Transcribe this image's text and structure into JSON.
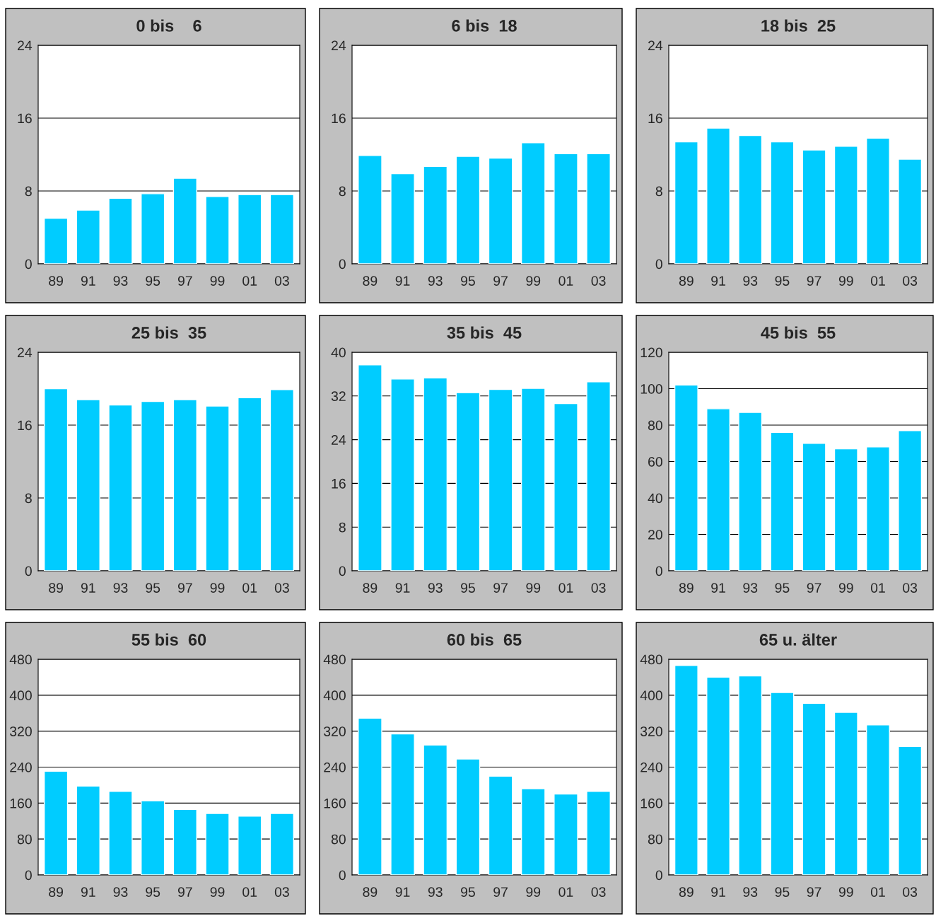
{
  "chart_data": [
    {
      "type": "bar",
      "title": "0 bis    6",
      "categories": [
        "89",
        "91",
        "93",
        "95",
        "97",
        "99",
        "01",
        "03"
      ],
      "series": [
        {
          "color": "#00ccff",
          "values": [
            5.0,
            5.9,
            7.2,
            7.7,
            9.4,
            7.4,
            7.6,
            7.6
          ]
        }
      ],
      "ylim": [
        0,
        24
      ],
      "yticks": [
        0,
        8,
        16,
        24
      ],
      "grid": "y"
    },
    {
      "type": "bar",
      "title": "6 bis  18",
      "categories": [
        "89",
        "91",
        "93",
        "95",
        "97",
        "99",
        "01",
        "03"
      ],
      "series": [
        {
          "color": "#00ccff",
          "values": [
            11.9,
            9.9,
            10.7,
            11.8,
            11.6,
            13.3,
            12.1,
            12.1
          ]
        }
      ],
      "ylim": [
        0,
        24
      ],
      "yticks": [
        0,
        8,
        16,
        24
      ],
      "grid": "y"
    },
    {
      "type": "bar",
      "title": "18 bis  25",
      "categories": [
        "89",
        "91",
        "93",
        "95",
        "97",
        "99",
        "01",
        "03"
      ],
      "series": [
        {
          "color": "#00ccff",
          "values": [
            13.4,
            14.9,
            14.1,
            13.4,
            12.5,
            12.9,
            13.8,
            11.5
          ]
        }
      ],
      "ylim": [
        0,
        24
      ],
      "yticks": [
        0,
        8,
        16,
        24
      ],
      "grid": "y"
    },
    {
      "type": "bar",
      "title": "25 bis  35",
      "categories": [
        "89",
        "91",
        "93",
        "95",
        "97",
        "99",
        "01",
        "03"
      ],
      "series": [
        {
          "color": "#00ccff",
          "values": [
            20.0,
            18.8,
            18.2,
            18.6,
            18.8,
            18.1,
            19.0,
            19.9
          ]
        }
      ],
      "ylim": [
        0,
        24
      ],
      "yticks": [
        0,
        8,
        16,
        24
      ],
      "grid": "y"
    },
    {
      "type": "bar",
      "title": "35 bis  45",
      "categories": [
        "89",
        "91",
        "93",
        "95",
        "97",
        "99",
        "01",
        "03"
      ],
      "series": [
        {
          "color": "#00ccff",
          "values": [
            37.7,
            35.1,
            35.3,
            32.6,
            33.2,
            33.4,
            30.6,
            34.6
          ]
        }
      ],
      "ylim": [
        0,
        40
      ],
      "yticks": [
        0,
        8,
        16,
        24,
        32,
        40
      ],
      "grid": "y"
    },
    {
      "type": "bar",
      "title": "45 bis  55",
      "categories": [
        "89",
        "91",
        "93",
        "95",
        "97",
        "99",
        "01",
        "03"
      ],
      "series": [
        {
          "color": "#00ccff",
          "values": [
            102,
            89,
            87,
            76,
            70,
            67,
            68,
            77
          ]
        }
      ],
      "ylim": [
        0,
        120
      ],
      "yticks": [
        0,
        20,
        40,
        60,
        80,
        100,
        120
      ],
      "grid": "y"
    },
    {
      "type": "bar",
      "title": "55 bis  60",
      "categories": [
        "89",
        "91",
        "93",
        "95",
        "97",
        "99",
        "01",
        "03"
      ],
      "series": [
        {
          "color": "#00ccff",
          "values": [
            231,
            198,
            186,
            165,
            146,
            137,
            131,
            137
          ]
        }
      ],
      "ylim": [
        0,
        480
      ],
      "yticks": [
        0,
        80,
        160,
        240,
        320,
        400,
        480
      ],
      "grid": "y"
    },
    {
      "type": "bar",
      "title": "60 bis  65",
      "categories": [
        "89",
        "91",
        "93",
        "95",
        "97",
        "99",
        "01",
        "03"
      ],
      "series": [
        {
          "color": "#00ccff",
          "values": [
            349,
            314,
            289,
            258,
            220,
            192,
            180,
            186
          ]
        }
      ],
      "ylim": [
        0,
        480
      ],
      "yticks": [
        0,
        80,
        160,
        240,
        320,
        400,
        480
      ],
      "grid": "y"
    },
    {
      "type": "bar",
      "title": "65 u. älter",
      "categories": [
        "89",
        "91",
        "93",
        "95",
        "97",
        "99",
        "01",
        "03"
      ],
      "series": [
        {
          "color": "#00ccff",
          "values": [
            466,
            440,
            443,
            406,
            382,
            362,
            334,
            286
          ]
        }
      ],
      "ylim": [
        0,
        480
      ],
      "yticks": [
        0,
        80,
        160,
        240,
        320,
        400,
        480
      ],
      "grid": "y"
    }
  ]
}
